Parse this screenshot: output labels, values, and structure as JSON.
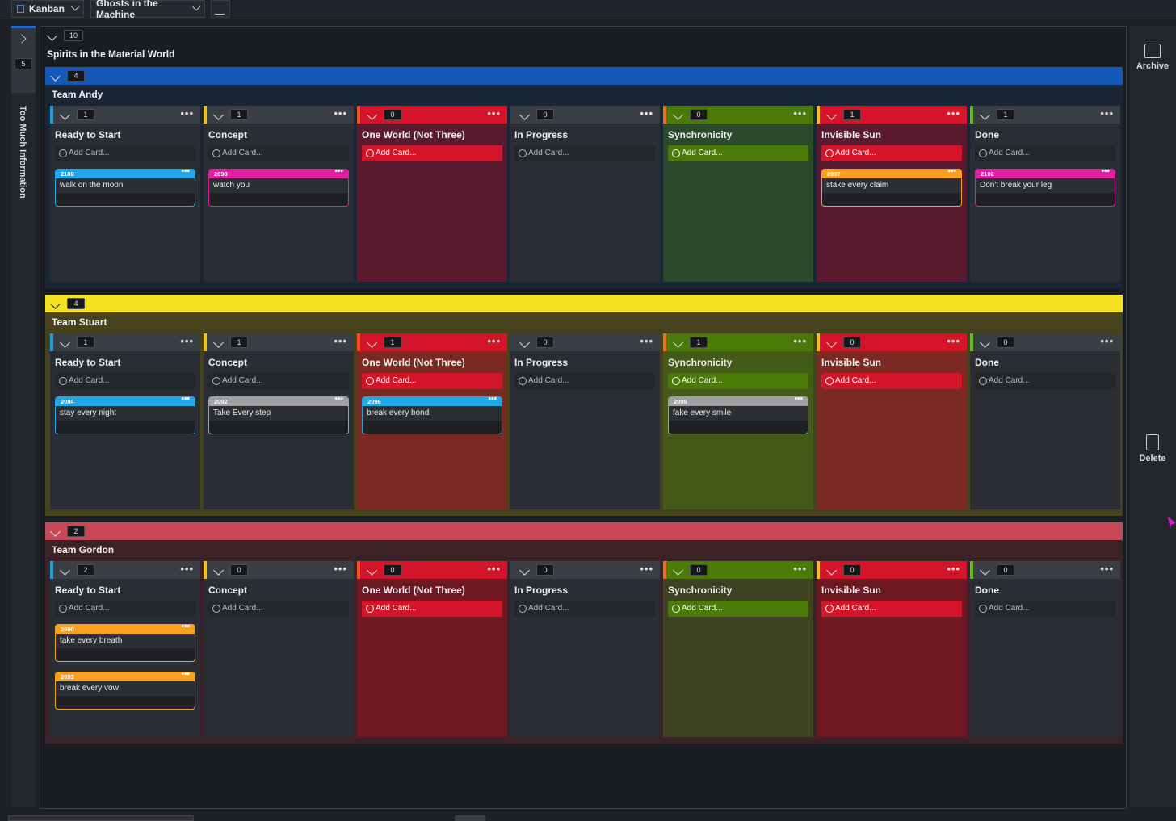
{
  "toolbar": {
    "view_label": "Kanban",
    "board_label": "Ghosts in the Machine",
    "flask_icon": "flask-icon"
  },
  "left_panel": {
    "count": "5",
    "title": "Too Much Information"
  },
  "board": {
    "count": "10",
    "title": "Spirits in the Material World"
  },
  "right_panel": {
    "archive_label": "Archive",
    "delete_label": "Delete"
  },
  "columns": [
    {
      "name": "Ready to Start",
      "accent": "#1aa0e0",
      "style": "normal"
    },
    {
      "name": "Concept",
      "accent": "#f0c020",
      "style": "normal"
    },
    {
      "name": "One World (Not Three)",
      "accent": "#f05020",
      "style": "red"
    },
    {
      "name": "In Progress",
      "accent": "#3a3e45",
      "style": "normal"
    },
    {
      "name": "Synchronicity",
      "accent": "#f07020",
      "style": "green"
    },
    {
      "name": "Invisible Sun",
      "accent": "#f0c020",
      "style": "red"
    },
    {
      "name": "Done",
      "accent": "#60c020",
      "style": "normal"
    }
  ],
  "add_card_label": "Add Card...",
  "swimlanes": [
    {
      "title": "Team Andy",
      "count": "4",
      "bar_color": "#1558b8",
      "bg": "#1a2535",
      "counts": [
        "1",
        "1",
        "0",
        "0",
        "0",
        "1",
        "1"
      ],
      "cards": [
        [
          {
            "id": "2100",
            "text": "walk on the moon",
            "color": "#1ea8e8"
          }
        ],
        [
          {
            "id": "2098",
            "text": "watch you",
            "color": "#e020a0"
          }
        ],
        [],
        [],
        [],
        [
          {
            "id": "2097",
            "text": "stake every claim",
            "color": "#f8a020"
          }
        ],
        [
          {
            "id": "2102",
            "text": "Don't break your leg",
            "color": "#e020a0"
          }
        ]
      ]
    },
    {
      "title": "Team Stuart",
      "count": "4",
      "bar_color": "#f5e020",
      "bg": "#45421c",
      "counts": [
        "1",
        "1",
        "1",
        "0",
        "1",
        "0",
        "0"
      ],
      "cards": [
        [
          {
            "id": "2094",
            "text": "stay every night",
            "color": "#1ea8e8"
          }
        ],
        [
          {
            "id": "2092",
            "text": "Take Every step",
            "color": "#a0a0a0"
          }
        ],
        [
          {
            "id": "2096",
            "text": "break every bond",
            "color": "#1ea8e8"
          }
        ],
        [],
        [
          {
            "id": "2095",
            "text": "fake every smile",
            "color": "#a0a0a0"
          }
        ],
        [],
        []
      ]
    },
    {
      "title": "Team Gordon",
      "count": "2",
      "bar_color": "#c84858",
      "bg": "#3a2226",
      "counts": [
        "2",
        "0",
        "0",
        "0",
        "0",
        "0",
        "0"
      ],
      "cards": [
        [
          {
            "id": "2090",
            "text": "take every breath",
            "color": "#f8a020"
          },
          {
            "id": "2093",
            "text": "break every vow",
            "color": "#f8a020"
          }
        ],
        [],
        [],
        [],
        [],
        [],
        []
      ]
    }
  ]
}
